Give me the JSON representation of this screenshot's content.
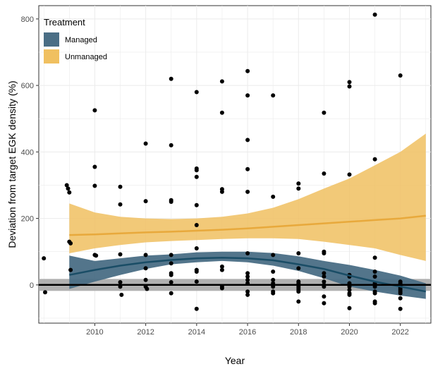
{
  "chart_data": {
    "type": "scatter",
    "xlabel": "Year",
    "ylabel": "Deviation from target EGK density (%)",
    "x_ticks": [
      2010,
      2012,
      2014,
      2016,
      2018,
      2020,
      2022
    ],
    "y_ticks": [
      0,
      200,
      400,
      600,
      800
    ],
    "xlim": [
      2007.8,
      2023.2
    ],
    "ylim": [
      -115,
      840
    ],
    "grid": true,
    "legend": {
      "title": "Treatment",
      "placement": "top-left",
      "entries": [
        {
          "label": "Managed",
          "color": "#4a6e85"
        },
        {
          "label": "Unmanaged",
          "color": "#f0c060"
        }
      ]
    },
    "reference": {
      "y": 0,
      "band": [
        -18,
        18
      ],
      "band_color": "#a9a9a9",
      "line_color": "#000000"
    },
    "series": [
      {
        "name": "Managed",
        "line_color": "#1a4d66",
        "band_color": "#4a6e85",
        "fit_x": [
          2009,
          2010,
          2011,
          2012,
          2013,
          2014,
          2015,
          2016,
          2017,
          2018,
          2019,
          2020,
          2021,
          2022,
          2023
        ],
        "fit_y": [
          30,
          45,
          58,
          68,
          75,
          80,
          82,
          80,
          74,
          62,
          48,
          28,
          10,
          -5,
          -20
        ],
        "lower": [
          -12,
          10,
          30,
          48,
          62,
          68,
          72,
          68,
          58,
          42,
          20,
          -5,
          -20,
          -32,
          -42
        ],
        "upper": [
          88,
          72,
          80,
          88,
          92,
          98,
          100,
          100,
          96,
          86,
          72,
          60,
          45,
          28,
          5
        ]
      },
      {
        "name": "Unmanaged",
        "line_color": "#e8a93c",
        "band_color": "#f0c060",
        "fit_x": [
          2009,
          2010,
          2011,
          2012,
          2013,
          2014,
          2015,
          2016,
          2017,
          2018,
          2019,
          2020,
          2021,
          2022,
          2023
        ],
        "fit_y": [
          150,
          152,
          155,
          158,
          160,
          163,
          166,
          170,
          175,
          180,
          185,
          190,
          195,
          200,
          208
        ],
        "lower": [
          95,
          110,
          120,
          128,
          132,
          135,
          138,
          140,
          140,
          138,
          130,
          120,
          110,
          90,
          72
        ],
        "upper": [
          245,
          218,
          205,
          200,
          198,
          200,
          205,
          215,
          232,
          258,
          290,
          320,
          360,
          400,
          455
        ]
      }
    ],
    "points": [
      [
        2008,
        80
      ],
      [
        2008.05,
        -22
      ],
      [
        2008.9,
        300
      ],
      [
        2008.95,
        290
      ],
      [
        2009,
        278
      ],
      [
        2009,
        130
      ],
      [
        2009.05,
        125
      ],
      [
        2009.05,
        45
      ],
      [
        2010,
        525
      ],
      [
        2010,
        355
      ],
      [
        2010,
        298
      ],
      [
        2010,
        90
      ],
      [
        2010.05,
        88
      ],
      [
        2011,
        295
      ],
      [
        2011,
        242
      ],
      [
        2011,
        92
      ],
      [
        2011,
        8
      ],
      [
        2011,
        -5
      ],
      [
        2011.05,
        -30
      ],
      [
        2012,
        425
      ],
      [
        2012,
        252
      ],
      [
        2012,
        90
      ],
      [
        2012,
        50
      ],
      [
        2012,
        15
      ],
      [
        2012,
        -5
      ],
      [
        2012.05,
        -12
      ],
      [
        2013,
        620
      ],
      [
        2013,
        420
      ],
      [
        2013,
        255
      ],
      [
        2013,
        250
      ],
      [
        2013,
        90
      ],
      [
        2013,
        65
      ],
      [
        2013,
        35
      ],
      [
        2013,
        30
      ],
      [
        2013,
        8
      ],
      [
        2013,
        -25
      ],
      [
        2014,
        580
      ],
      [
        2014,
        350
      ],
      [
        2014,
        345
      ],
      [
        2014,
        325
      ],
      [
        2014,
        240
      ],
      [
        2014,
        180
      ],
      [
        2014,
        110
      ],
      [
        2014,
        45
      ],
      [
        2014,
        40
      ],
      [
        2014,
        10
      ],
      [
        2014,
        -72
      ],
      [
        2015,
        612
      ],
      [
        2015,
        518
      ],
      [
        2015,
        288
      ],
      [
        2015,
        280
      ],
      [
        2015,
        55
      ],
      [
        2015,
        45
      ],
      [
        2015,
        -5
      ],
      [
        2015,
        -10
      ],
      [
        2016,
        643
      ],
      [
        2016,
        570
      ],
      [
        2016,
        436
      ],
      [
        2016,
        348
      ],
      [
        2016,
        280
      ],
      [
        2016,
        95
      ],
      [
        2016,
        35
      ],
      [
        2016,
        25
      ],
      [
        2016,
        15
      ],
      [
        2016,
        5
      ],
      [
        2016,
        -20
      ],
      [
        2016,
        -30
      ],
      [
        2017,
        570
      ],
      [
        2017,
        265
      ],
      [
        2017,
        90
      ],
      [
        2017,
        40
      ],
      [
        2017,
        15
      ],
      [
        2017,
        5
      ],
      [
        2017,
        -5
      ],
      [
        2017,
        -20
      ],
      [
        2017,
        -25
      ],
      [
        2018,
        305
      ],
      [
        2018,
        290
      ],
      [
        2018,
        95
      ],
      [
        2018,
        50
      ],
      [
        2018,
        10
      ],
      [
        2018,
        5
      ],
      [
        2018,
        -5
      ],
      [
        2018,
        -10
      ],
      [
        2018,
        -15
      ],
      [
        2018,
        -20
      ],
      [
        2018,
        -50
      ],
      [
        2019,
        518
      ],
      [
        2019,
        335
      ],
      [
        2019,
        100
      ],
      [
        2019,
        95
      ],
      [
        2019,
        35
      ],
      [
        2019,
        25
      ],
      [
        2019,
        10
      ],
      [
        2019,
        0
      ],
      [
        2019,
        -5
      ],
      [
        2019,
        -35
      ],
      [
        2019,
        -55
      ],
      [
        2020,
        610
      ],
      [
        2020,
        597
      ],
      [
        2020,
        332
      ],
      [
        2020,
        30
      ],
      [
        2020,
        25
      ],
      [
        2020,
        5
      ],
      [
        2020,
        -5
      ],
      [
        2020,
        -15
      ],
      [
        2020,
        -25
      ],
      [
        2020,
        -30
      ],
      [
        2020,
        -70
      ],
      [
        2021,
        813
      ],
      [
        2021,
        378
      ],
      [
        2021,
        82
      ],
      [
        2021,
        40
      ],
      [
        2021,
        25
      ],
      [
        2021,
        5
      ],
      [
        2021,
        -5
      ],
      [
        2021,
        -20
      ],
      [
        2021,
        -25
      ],
      [
        2021,
        -50
      ],
      [
        2021,
        -55
      ],
      [
        2022,
        630
      ],
      [
        2022,
        10
      ],
      [
        2022,
        5
      ],
      [
        2022,
        -5
      ],
      [
        2022,
        -10
      ],
      [
        2022,
        -15
      ],
      [
        2022,
        -20
      ],
      [
        2022,
        -25
      ],
      [
        2022,
        -40
      ],
      [
        2022,
        -72
      ]
    ]
  }
}
